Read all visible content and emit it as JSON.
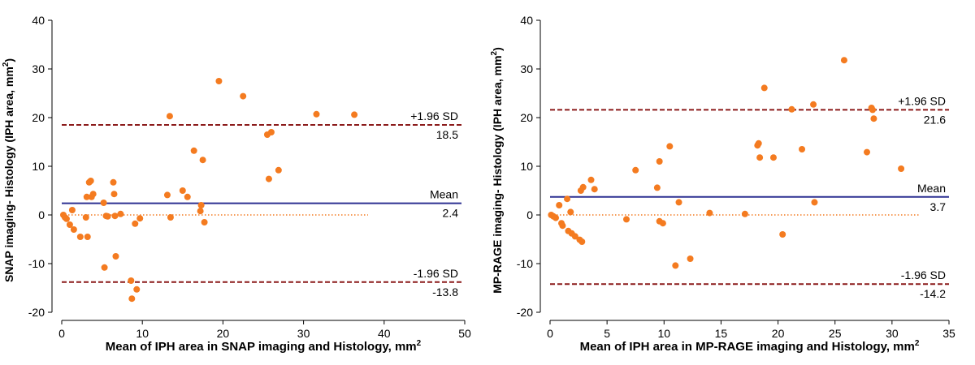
{
  "chart_data": [
    {
      "type": "scatter",
      "title": "",
      "xlabel": "Mean of IPH area in SNAP imaging and Histology, mm",
      "ylabel": "SNAP imaging- Histology (IPH area, mm",
      "unit_superscript": "2",
      "xlabel_suffix": "",
      "ylabel_suffix": ")",
      "xlim": [
        0,
        50
      ],
      "ylim": [
        -20,
        40
      ],
      "xticks": [
        0,
        10,
        20,
        30,
        40,
        50
      ],
      "yticks": [
        -20,
        -10,
        0,
        10,
        20,
        30,
        40
      ],
      "zero_line_end": 38,
      "colors": {
        "points": "#f47b20",
        "mean": "#2e3192",
        "limits": "#8b1a1a",
        "zero": "#f47b20"
      },
      "mean": {
        "value": 2.4,
        "label": "Mean",
        "value_label": "2.4"
      },
      "upper": {
        "value": 18.5,
        "label": "+1.96 SD",
        "value_label": "18.5"
      },
      "lower": {
        "value": -13.8,
        "label": "-1.96 SD",
        "value_label": "-13.8"
      },
      "points": [
        [
          0.2,
          0
        ],
        [
          0.4,
          -0.5
        ],
        [
          0.6,
          -0.8
        ],
        [
          1,
          -2
        ],
        [
          1.3,
          1
        ],
        [
          1.5,
          -3
        ],
        [
          2.3,
          -4.5
        ],
        [
          3,
          -0.5
        ],
        [
          3.1,
          3.7
        ],
        [
          3.2,
          -4.5
        ],
        [
          3.4,
          6.7
        ],
        [
          3.6,
          7
        ],
        [
          3.7,
          3.7
        ],
        [
          3.9,
          4.3
        ],
        [
          5.2,
          2.5
        ],
        [
          5.3,
          -10.8
        ],
        [
          5.5,
          -0.2
        ],
        [
          5.7,
          -0.3
        ],
        [
          6.4,
          6.7
        ],
        [
          6.5,
          4.3
        ],
        [
          6.6,
          -0.2
        ],
        [
          6.7,
          -8.5
        ],
        [
          7.3,
          0.2
        ],
        [
          8.6,
          -13.5
        ],
        [
          8.7,
          -17.2
        ],
        [
          9.1,
          -1.8
        ],
        [
          9.3,
          -15.3
        ],
        [
          9.7,
          -0.7
        ],
        [
          13.1,
          4.1
        ],
        [
          13.4,
          20.3
        ],
        [
          13.5,
          -0.5
        ],
        [
          15,
          5
        ],
        [
          15.6,
          3.7
        ],
        [
          16.4,
          13.2
        ],
        [
          17.2,
          0.8
        ],
        [
          17.3,
          2
        ],
        [
          17.5,
          11.3
        ],
        [
          17.7,
          -1.5
        ],
        [
          19.5,
          27.5
        ],
        [
          22.5,
          24.4
        ],
        [
          25.5,
          16.5
        ],
        [
          25.7,
          7.4
        ],
        [
          26,
          17
        ],
        [
          26.9,
          9.2
        ],
        [
          31.6,
          20.7
        ],
        [
          36.3,
          20.6
        ]
      ]
    },
    {
      "type": "scatter",
      "title": "",
      "xlabel": "Mean of IPH area in MP-RAGE imaging and Histology, mm",
      "ylabel": "MP-RAGE imaging- Histology (IPH area, mm",
      "unit_superscript": "2",
      "xlabel_suffix": "",
      "ylabel_suffix": ")",
      "xlim": [
        0,
        35
      ],
      "ylim": [
        -20,
        40
      ],
      "xticks": [
        0,
        5,
        10,
        15,
        20,
        25,
        30,
        35
      ],
      "yticks": [
        -20,
        -10,
        0,
        10,
        20,
        30,
        40
      ],
      "zero_line_end": 32.5,
      "colors": {
        "points": "#f47b20",
        "mean": "#2e3192",
        "limits": "#8b1a1a",
        "zero": "#f47b20"
      },
      "mean": {
        "value": 3.7,
        "label": "Mean",
        "value_label": "3.7"
      },
      "upper": {
        "value": 21.6,
        "label": "+1.96 SD",
        "value_label": "21.6"
      },
      "lower": {
        "value": -14.2,
        "label": "-1.96 SD",
        "value_label": "-14.2"
      },
      "points": [
        [
          0.1,
          0
        ],
        [
          0.3,
          -0.3
        ],
        [
          0.5,
          -0.6
        ],
        [
          0.8,
          2
        ],
        [
          1,
          -1.7
        ],
        [
          1.1,
          -2.2
        ],
        [
          1.5,
          3.3
        ],
        [
          1.6,
          -3.3
        ],
        [
          1.8,
          0.6
        ],
        [
          1.9,
          -3.8
        ],
        [
          2.2,
          -4.4
        ],
        [
          2.6,
          -5.1
        ],
        [
          2.7,
          5
        ],
        [
          2.8,
          -5.5
        ],
        [
          2.9,
          5.7
        ],
        [
          3.6,
          7.2
        ],
        [
          3.9,
          5.3
        ],
        [
          6.7,
          -0.9
        ],
        [
          7.5,
          9.2
        ],
        [
          9.4,
          5.6
        ],
        [
          9.6,
          -1.3
        ],
        [
          9.6,
          11
        ],
        [
          9.9,
          -1.7
        ],
        [
          10.5,
          14.1
        ],
        [
          11,
          -10.4
        ],
        [
          11.3,
          2.6
        ],
        [
          12.3,
          -9
        ],
        [
          14,
          0.4
        ],
        [
          17.1,
          0.2
        ],
        [
          18.2,
          14.3
        ],
        [
          18.3,
          14.7
        ],
        [
          18.4,
          11.8
        ],
        [
          18.8,
          26.1
        ],
        [
          19.6,
          11.8
        ],
        [
          20.4,
          -4
        ],
        [
          21.2,
          21.7
        ],
        [
          22.1,
          13.5
        ],
        [
          23.1,
          22.7
        ],
        [
          23.2,
          2.6
        ],
        [
          25.8,
          31.8
        ],
        [
          27.8,
          12.9
        ],
        [
          28.2,
          22
        ],
        [
          28.3,
          21.6
        ],
        [
          28.4,
          19.8
        ],
        [
          30.8,
          9.5
        ]
      ]
    }
  ]
}
